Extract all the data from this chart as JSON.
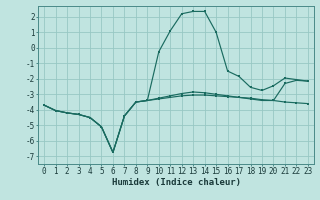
{
  "xlabel": "Humidex (Indice chaleur)",
  "bg_color": "#c0e4e0",
  "grid_color": "#98c8c4",
  "line_color": "#1a6b60",
  "xlim": [
    -0.5,
    23.5
  ],
  "ylim": [
    -7.5,
    2.7
  ],
  "yticks": [
    -7,
    -6,
    -5,
    -4,
    -3,
    -2,
    -1,
    0,
    1,
    2
  ],
  "xticks": [
    0,
    1,
    2,
    3,
    4,
    5,
    6,
    7,
    8,
    9,
    10,
    11,
    12,
    13,
    14,
    15,
    16,
    17,
    18,
    19,
    20,
    21,
    22,
    23
  ],
  "line1_x": [
    0,
    1,
    2,
    3,
    4,
    5,
    6,
    7,
    8,
    9,
    10,
    11,
    12,
    13,
    14,
    15,
    16,
    17,
    18,
    19,
    20,
    21,
    22,
    23
  ],
  "line1_y": [
    -3.7,
    -4.05,
    -4.2,
    -4.3,
    -4.5,
    -5.1,
    -6.75,
    -4.4,
    -3.5,
    -3.4,
    -3.3,
    -3.2,
    -3.1,
    -3.05,
    -3.05,
    -3.1,
    -3.15,
    -3.2,
    -3.25,
    -3.35,
    -3.4,
    -3.5,
    -3.55,
    -3.6
  ],
  "line2_x": [
    0,
    1,
    2,
    3,
    4,
    5,
    6,
    7,
    8,
    9,
    10,
    11,
    12,
    13,
    14,
    15,
    16,
    17,
    18,
    19,
    20,
    21,
    22,
    23
  ],
  "line2_y": [
    -3.7,
    -4.05,
    -4.2,
    -4.3,
    -4.5,
    -5.1,
    -6.75,
    -4.4,
    -3.5,
    -3.4,
    -0.25,
    1.1,
    2.2,
    2.35,
    2.35,
    1.0,
    -1.5,
    -1.85,
    -2.55,
    -2.75,
    -2.45,
    -1.95,
    -2.05,
    -2.15
  ],
  "line3_x": [
    0,
    1,
    2,
    3,
    4,
    5,
    6,
    7,
    8,
    9,
    10,
    11,
    12,
    13,
    14,
    15,
    16,
    17,
    18,
    19,
    20,
    21,
    22,
    23
  ],
  "line3_y": [
    -3.7,
    -4.05,
    -4.2,
    -4.3,
    -4.5,
    -5.1,
    -6.75,
    -4.4,
    -3.5,
    -3.4,
    -3.25,
    -3.1,
    -2.95,
    -2.85,
    -2.9,
    -3.0,
    -3.1,
    -3.2,
    -3.3,
    -3.4,
    -3.4,
    -2.3,
    -2.1,
    -2.15
  ],
  "tick_fontsize": 5.5,
  "xlabel_fontsize": 6.5
}
